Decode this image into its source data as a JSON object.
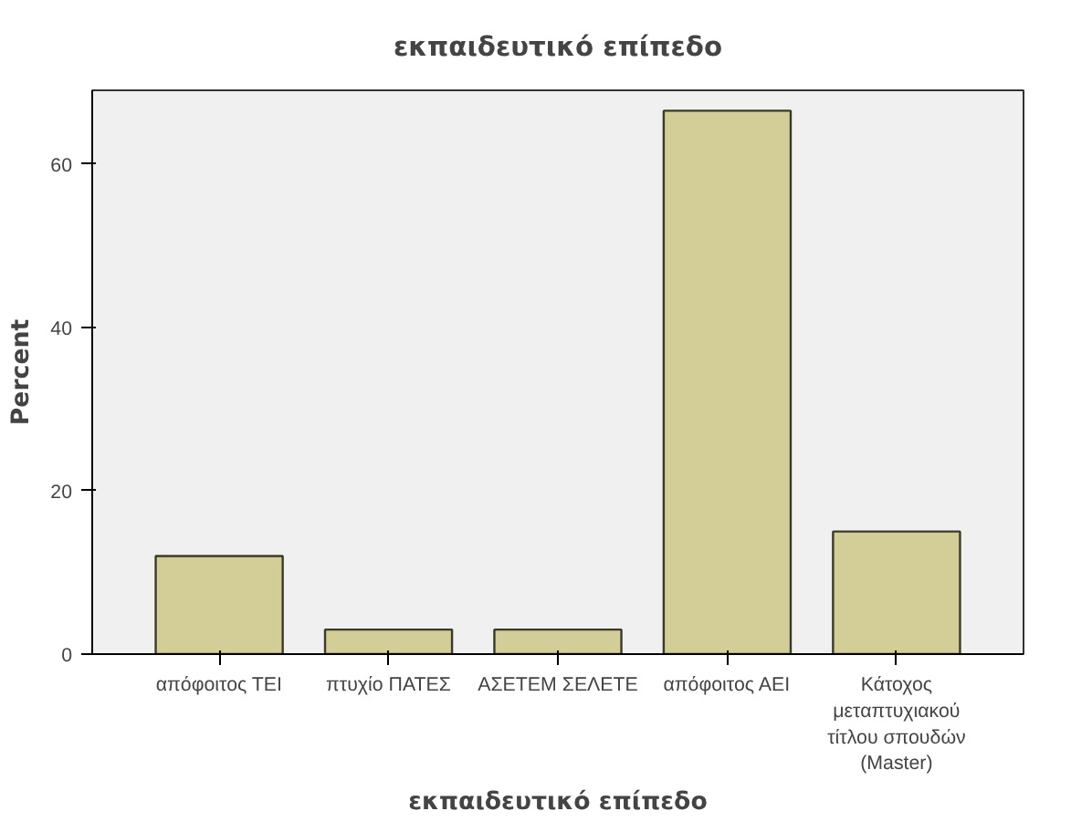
{
  "chart_data": {
    "type": "bar",
    "title": "εκπαιδευτικό επίπεδο",
    "xlabel": "εκπαιδευτικό επίπεδο",
    "ylabel": "Percent",
    "categories": [
      "απόφοιτος ΤΕΙ",
      "πτυχίο ΠΑΤΕΣ",
      "ΑΣΕΤΕΜ ΣΕΛΕΤΕ",
      "απόφοιτος ΑΕΙ",
      "Κάτοχος μεταπτυχιακού τίτλου σπουδών (Master)"
    ],
    "values": [
      12.0,
      3.0,
      3.0,
      66.5,
      15.0
    ],
    "color": "#d3ce97",
    "ylim": [
      0,
      69
    ],
    "yticks": [
      0,
      20,
      40,
      60
    ],
    "grid": false
  }
}
